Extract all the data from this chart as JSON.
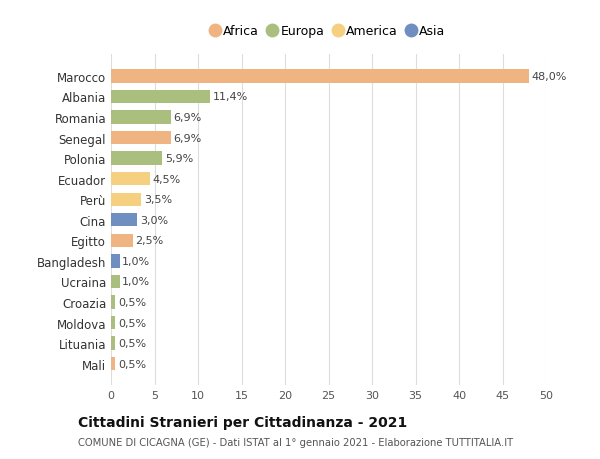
{
  "countries": [
    "Marocco",
    "Albania",
    "Romania",
    "Senegal",
    "Polonia",
    "Ecuador",
    "Perù",
    "Cina",
    "Egitto",
    "Bangladesh",
    "Ucraina",
    "Croazia",
    "Moldova",
    "Lituania",
    "Mali"
  ],
  "values": [
    48.0,
    11.4,
    6.9,
    6.9,
    5.9,
    4.5,
    3.5,
    3.0,
    2.5,
    1.0,
    1.0,
    0.5,
    0.5,
    0.5,
    0.5
  ],
  "labels": [
    "48,0%",
    "11,4%",
    "6,9%",
    "6,9%",
    "5,9%",
    "4,5%",
    "3,5%",
    "3,0%",
    "2,5%",
    "1,0%",
    "1,0%",
    "0,5%",
    "0,5%",
    "0,5%",
    "0,5%"
  ],
  "continents": [
    "Africa",
    "Europa",
    "Europa",
    "Africa",
    "Europa",
    "America",
    "America",
    "Asia",
    "Africa",
    "Asia",
    "Europa",
    "Europa",
    "Europa",
    "Europa",
    "Africa"
  ],
  "continent_colors": {
    "Africa": "#F0B482",
    "Europa": "#AABF7E",
    "America": "#F5D080",
    "Asia": "#6E8FBF"
  },
  "legend_order": [
    "Africa",
    "Europa",
    "America",
    "Asia"
  ],
  "title": "Cittadini Stranieri per Cittadinanza - 2021",
  "subtitle": "COMUNE DI CICAGNA (GE) - Dati ISTAT al 1° gennaio 2021 - Elaborazione TUTTITALIA.IT",
  "xlim": [
    0,
    50
  ],
  "xticks": [
    0,
    5,
    10,
    15,
    20,
    25,
    30,
    35,
    40,
    45,
    50
  ],
  "bg_color": "#FFFFFF",
  "grid_color": "#DDDDDD"
}
